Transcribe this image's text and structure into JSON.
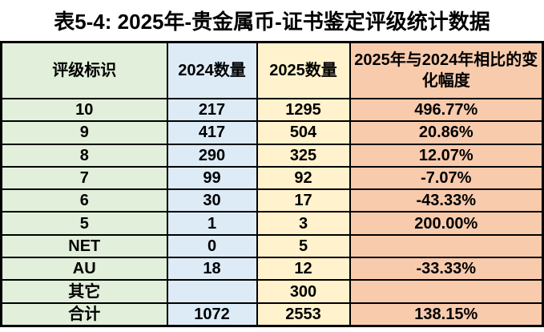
{
  "title": "表5-4: 2025年-贵金属币-证书鉴定评级统计数据",
  "colors": {
    "grade_col_bg": "#e2efda",
    "count2024_col_bg": "#ddebf7",
    "count2025_col_bg": "#fff2cc",
    "change_col_bg": "#f8cbad",
    "border": "#000000",
    "page_bg": "#ffffff",
    "text": "#000000"
  },
  "table": {
    "columns": [
      {
        "label": "评级标识",
        "bg": "#e2efda"
      },
      {
        "label": "2024数量",
        "bg": "#ddebf7"
      },
      {
        "label": "2025数量",
        "bg": "#fff2cc"
      },
      {
        "label": "2025年与2024年相比的变化幅度",
        "bg": "#f8cbad"
      }
    ],
    "rows": [
      [
        "10",
        "217",
        "1295",
        "496.77%"
      ],
      [
        "9",
        "417",
        "504",
        "20.86%"
      ],
      [
        "8",
        "290",
        "325",
        "12.07%"
      ],
      [
        "7",
        "99",
        "92",
        "-7.07%"
      ],
      [
        "6",
        "30",
        "17",
        "-43.33%"
      ],
      [
        "5",
        "1",
        "3",
        "200.00%"
      ],
      [
        "NET",
        "0",
        "5",
        ""
      ],
      [
        "AU",
        "18",
        "12",
        "-33.33%"
      ],
      [
        "其它",
        "",
        "300",
        ""
      ],
      [
        "合计",
        "1072",
        "2553",
        "138.15%"
      ]
    ]
  }
}
